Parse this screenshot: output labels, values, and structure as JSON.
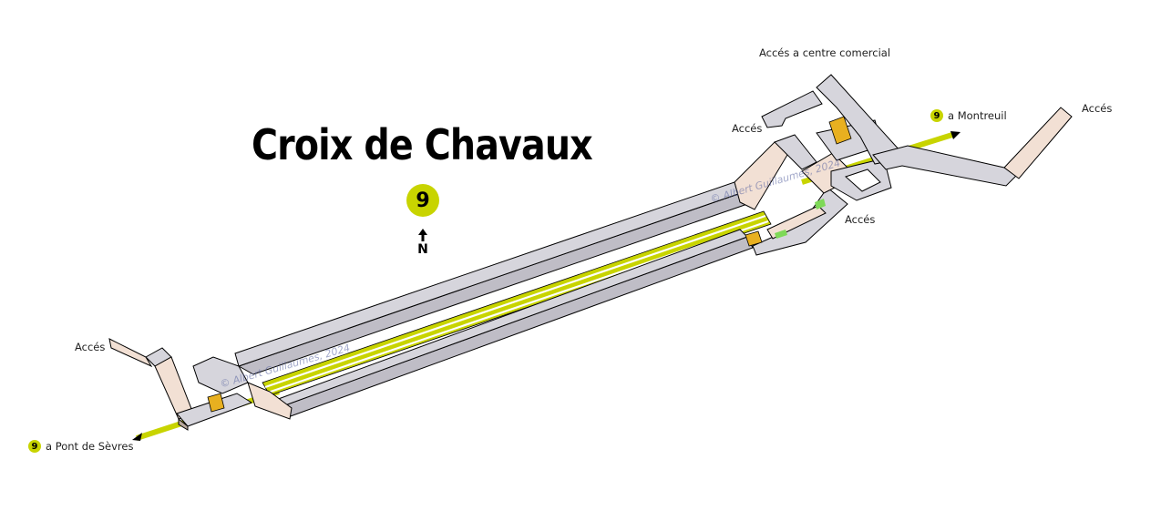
{
  "station": {
    "name": "Croix de Chavaux",
    "line": "9"
  },
  "compass": {
    "label": "N"
  },
  "colors": {
    "line": "#c8d400",
    "corridor": "#d6d5dc",
    "stairs": "#f2e0d4",
    "shade": "#b8a89c",
    "escalator": "#e8b020",
    "lift": "#7ed957"
  },
  "labels": {
    "access_commercial": "Accés a centre comercial",
    "access_top_left": "Accés",
    "access_far_right": "Accés",
    "access_mid_right": "Accés",
    "access_left": "Accés"
  },
  "directions": {
    "east": {
      "line": "9",
      "text": "a Montreuil"
    },
    "west": {
      "line": "9",
      "text": "a Pont de Sèvres"
    }
  },
  "watermarks": [
    "© Albert Guillaumes, 2024",
    "© Albert Guillaumes, 2024"
  ]
}
